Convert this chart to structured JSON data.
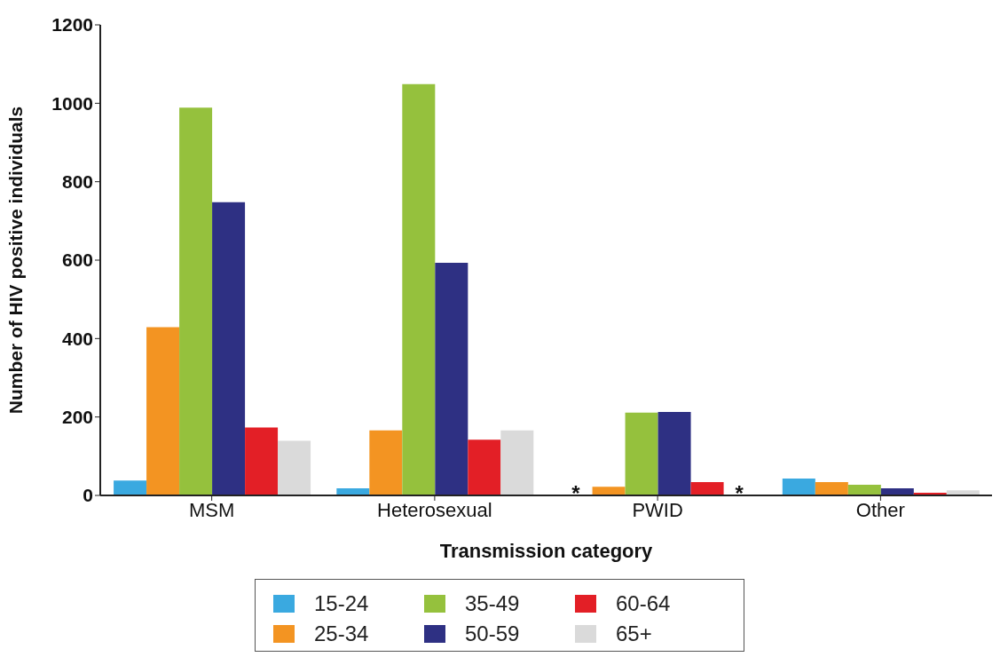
{
  "chart_data": {
    "type": "bar",
    "xlabel": "Transmission category",
    "ylabel": "Number of HIV positive individuals",
    "categories": [
      "MSM",
      "Heterosexual",
      "PWID",
      "Other"
    ],
    "series": [
      {
        "name": "15-24",
        "color": "#3aa9e0",
        "values": [
          38,
          18,
          null,
          43
        ],
        "value_labels": [
          null,
          null,
          "*",
          null
        ]
      },
      {
        "name": "25-34",
        "color": "#f39422",
        "values": [
          429,
          166,
          22,
          34
        ]
      },
      {
        "name": "35-49",
        "color": "#95c13d",
        "values": [
          989,
          1049,
          211,
          27
        ]
      },
      {
        "name": "50-59",
        "color": "#2e3083",
        "values": [
          748,
          593,
          213,
          18
        ]
      },
      {
        "name": "60-64",
        "color": "#e31f26",
        "values": [
          173,
          142,
          34,
          7
        ]
      },
      {
        "name": "65+",
        "color": "#dadada",
        "values": [
          139,
          166,
          null,
          13
        ],
        "value_labels": [
          null,
          null,
          "*",
          null
        ]
      }
    ],
    "ylim": [
      0,
      1200
    ],
    "yticks": [
      0,
      200,
      400,
      600,
      800,
      1000,
      1200
    ],
    "legend": "bottom"
  }
}
